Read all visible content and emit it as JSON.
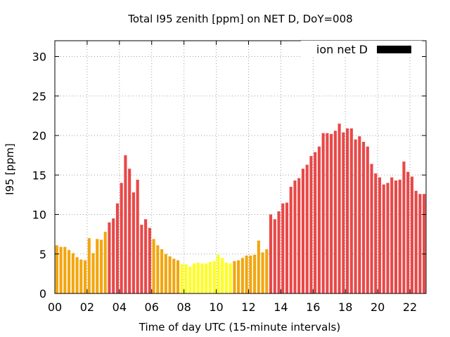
{
  "chart_data": {
    "type": "bar",
    "title": "Total I95 zenith [ppm] on NET D, DoY=008",
    "xlabel": "Time of day UTC (15-minute intervals)",
    "ylabel": "I95 [ppm]",
    "ylim": [
      0,
      32
    ],
    "yticks": [
      "0",
      "5",
      "10",
      "15",
      "20",
      "25",
      "30"
    ],
    "xticks": [
      "00",
      "02",
      "04",
      "06",
      "08",
      "10",
      "12",
      "14",
      "16",
      "18",
      "20",
      "22"
    ],
    "grid": true,
    "legend": {
      "label": "ion net D",
      "color": "#000000",
      "position": "top-right"
    },
    "colors": {
      "red": "#e84848",
      "orange": "#f2a60f",
      "yellow": "#ffff1a"
    },
    "interval_hours": 0.25,
    "values": [
      6.1,
      5.9,
      5.9,
      5.5,
      5.1,
      4.6,
      4.3,
      4.2,
      7.0,
      5.1,
      6.9,
      6.8,
      7.8,
      9.0,
      9.5,
      11.4,
      14.0,
      17.5,
      15.8,
      12.8,
      14.4,
      8.7,
      9.4,
      8.3,
      6.9,
      6.1,
      5.6,
      5.0,
      4.7,
      4.4,
      4.2,
      3.7,
      3.7,
      3.4,
      3.8,
      3.9,
      3.8,
      3.8,
      4.0,
      4.1,
      4.9,
      4.5,
      3.9,
      3.8,
      4.1,
      4.2,
      4.5,
      4.8,
      4.8,
      4.9,
      6.7,
      5.2,
      5.6,
      10.0,
      9.4,
      10.4,
      11.4,
      11.5,
      13.5,
      14.3,
      14.6,
      15.8,
      16.3,
      17.4,
      17.9,
      18.6,
      20.3,
      20.3,
      20.2,
      20.6,
      21.5,
      20.4,
      20.9,
      20.9,
      19.5,
      19.9,
      19.2,
      18.6,
      16.4,
      15.2,
      14.7,
      13.8,
      14.0,
      14.7,
      14.3,
      14.4,
      16.7,
      15.4,
      14.8,
      13.0,
      12.6,
      12.6
    ],
    "bar_colors": [
      "orange",
      "orange",
      "orange",
      "orange",
      "orange",
      "orange",
      "orange",
      "orange",
      "orange",
      "orange",
      "orange",
      "orange",
      "orange",
      "red",
      "red",
      "red",
      "red",
      "red",
      "red",
      "red",
      "red",
      "red",
      "red",
      "red",
      "orange",
      "orange",
      "orange",
      "orange",
      "orange",
      "orange",
      "orange",
      "yellow",
      "yellow",
      "yellow",
      "yellow",
      "yellow",
      "yellow",
      "yellow",
      "yellow",
      "yellow",
      "yellow",
      "yellow",
      "yellow",
      "yellow",
      "orange",
      "orange",
      "orange",
      "orange",
      "orange",
      "orange",
      "orange",
      "orange",
      "orange",
      "red",
      "red",
      "red",
      "red",
      "red",
      "red",
      "red",
      "red",
      "red",
      "red",
      "red",
      "red",
      "red",
      "red",
      "red",
      "red",
      "red",
      "red",
      "red",
      "red",
      "red",
      "red",
      "red",
      "red",
      "red",
      "red",
      "red",
      "red",
      "red",
      "red",
      "red",
      "red",
      "red",
      "red",
      "red",
      "red",
      "red",
      "red",
      "red"
    ]
  }
}
